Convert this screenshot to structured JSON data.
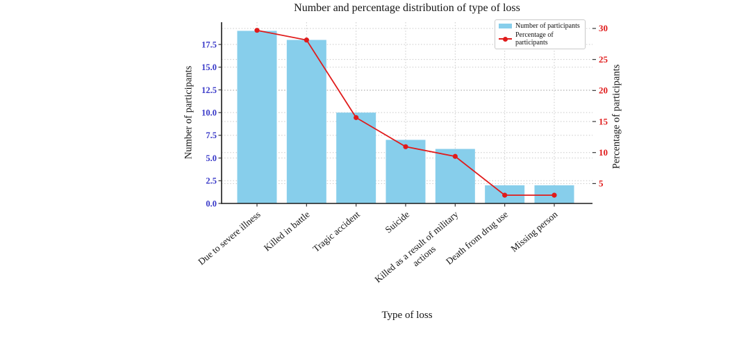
{
  "chart_data": {
    "type": "combo",
    "title": "Number and percentage distribution of type of loss",
    "xlabel": "Type of loss",
    "ylabel_left": "Number of participants",
    "ylabel_right": "Percentage of participants",
    "categories": [
      "Due to severe illness",
      "Killed in battle",
      "Tragic accident",
      "Suicide",
      "Killed as a result of military\nactions",
      "Death from drug use",
      "Missing person"
    ],
    "series": [
      {
        "name": "Number of participants",
        "type": "bar",
        "axis": "left",
        "color": "#87ceeb",
        "values": [
          19,
          18,
          10,
          7,
          6,
          2,
          2
        ]
      },
      {
        "name": "Percentage of participants",
        "type": "line",
        "axis": "right",
        "color": "#e01b1b",
        "marker": "circle",
        "values": [
          29.69,
          28.13,
          15.63,
          10.94,
          9.38,
          3.13,
          3.13
        ]
      }
    ],
    "yticks_left": [
      "0.0",
      "2.5",
      "5.0",
      "7.5",
      "10.0",
      "12.5",
      "15.0",
      "17.5"
    ],
    "yticks_right": [
      "5",
      "10",
      "15",
      "20",
      "25",
      "30"
    ],
    "ylim_left": [
      0,
      19.95
    ],
    "ylim_right": [
      1.8,
      31.0
    ],
    "grid": {
      "style": "dotted",
      "color": "#c8c8c8"
    },
    "legend": {
      "position": "upper right"
    },
    "colors": {
      "left_tick_labels": "#3838c8",
      "right_tick_labels": "#e01b1b",
      "bar": "#87ceeb",
      "line": "#e01b1b",
      "spine": "#1a1a1a"
    }
  }
}
